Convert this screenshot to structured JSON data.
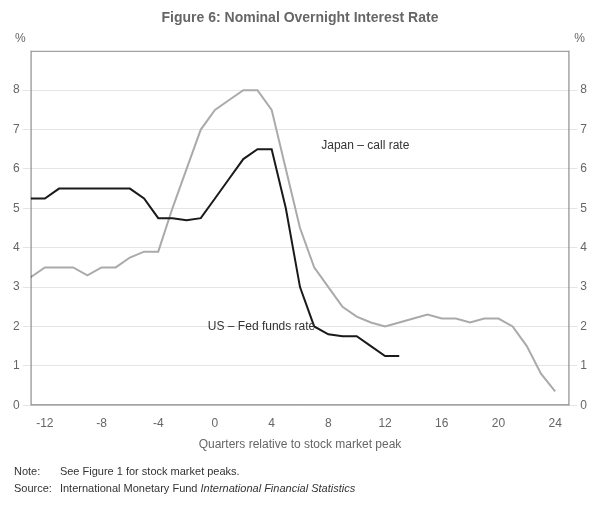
{
  "chart_data": {
    "type": "line",
    "title": "Figure 6: Nominal Overnight Interest Rate",
    "xlabel": "Quarters relative to stock market peak",
    "ylabel": "%",
    "y2label": "%",
    "xlim": [
      -13,
      25
    ],
    "xticks": [
      -12,
      -8,
      -4,
      0,
      4,
      8,
      12,
      16,
      20,
      24
    ],
    "ylim": [
      0,
      9
    ],
    "yticks": [
      0,
      1,
      2,
      3,
      4,
      5,
      6,
      7,
      8
    ],
    "y2lim": [
      0,
      9
    ],
    "y2ticks": [
      0,
      1,
      2,
      3,
      4,
      5,
      6,
      7,
      8
    ],
    "grid": "y",
    "series": [
      {
        "color": "#aaaaaa",
        "x": [
          -13,
          -12,
          -11,
          -10,
          -9,
          -8,
          -7,
          -6,
          -5,
          -4,
          -3,
          -2,
          -1,
          0,
          1,
          2,
          3,
          4,
          5,
          6,
          7,
          8,
          9,
          10,
          11,
          12,
          13,
          14,
          15,
          16,
          17,
          18,
          19,
          20,
          21,
          22,
          23,
          24
        ],
        "values": [
          3.25,
          3.5,
          3.5,
          3.5,
          3.3,
          3.5,
          3.5,
          3.75,
          3.9,
          3.9,
          5.0,
          6.0,
          7.0,
          7.5,
          7.75,
          8.0,
          8.0,
          7.5,
          6.0,
          4.5,
          3.5,
          3.0,
          2.5,
          2.25,
          2.1,
          2.0,
          2.1,
          2.2,
          2.3,
          2.2,
          2.2,
          2.1,
          2.2,
          2.2,
          2.0,
          1.5,
          0.8,
          0.35
        ]
      },
      {
        "color": "#1a1a1a",
        "x": [
          -13,
          -12,
          -11,
          -10,
          -9,
          -8,
          -7,
          -6,
          -5,
          -4,
          -3,
          -2,
          -1,
          0,
          1,
          2,
          3,
          4,
          5,
          6,
          7,
          8,
          9,
          10,
          11,
          12,
          13
        ],
        "values": [
          5.25,
          5.25,
          5.5,
          5.5,
          5.5,
          5.5,
          5.5,
          5.5,
          5.25,
          4.75,
          4.75,
          4.7,
          4.75,
          5.25,
          5.75,
          6.25,
          6.5,
          6.5,
          5.0,
          3.0,
          2.0,
          1.8,
          1.75,
          1.75,
          1.5,
          1.25,
          1.25
        ]
      }
    ],
    "annotations": [
      {
        "text": "Japan – call rate",
        "x": 7.5,
        "y": 6.5
      },
      {
        "text": "US – Fed funds rate",
        "x": -0.5,
        "y": 1.9
      }
    ],
    "footer": [
      {
        "label": "Note:",
        "parts": [
          {
            "text": "See Figure 1 for stock market peaks."
          }
        ]
      },
      {
        "label": "Source:",
        "parts": [
          {
            "text": "International Monetary Fund"
          },
          {
            "text": "International Financial Statistics",
            "italic": true
          }
        ]
      }
    ]
  }
}
